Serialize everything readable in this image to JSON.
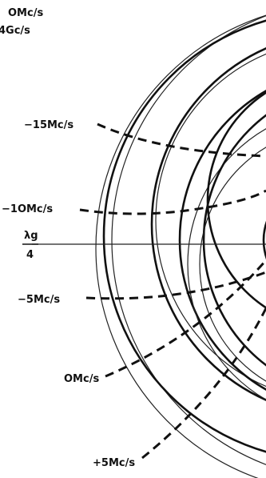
{
  "header": {
    "frequency": "OMc/s",
    "carrier": "4Gc/s"
  },
  "curves": [
    {
      "label": "−15Mc/s"
    },
    {
      "label": "−1OMc/s"
    },
    {
      "label": "−5Mc/s"
    },
    {
      "label": "OMc/s"
    },
    {
      "label": "+5Mc/s"
    }
  ],
  "axis": {
    "numerator": "λg",
    "denominator": "4"
  }
}
